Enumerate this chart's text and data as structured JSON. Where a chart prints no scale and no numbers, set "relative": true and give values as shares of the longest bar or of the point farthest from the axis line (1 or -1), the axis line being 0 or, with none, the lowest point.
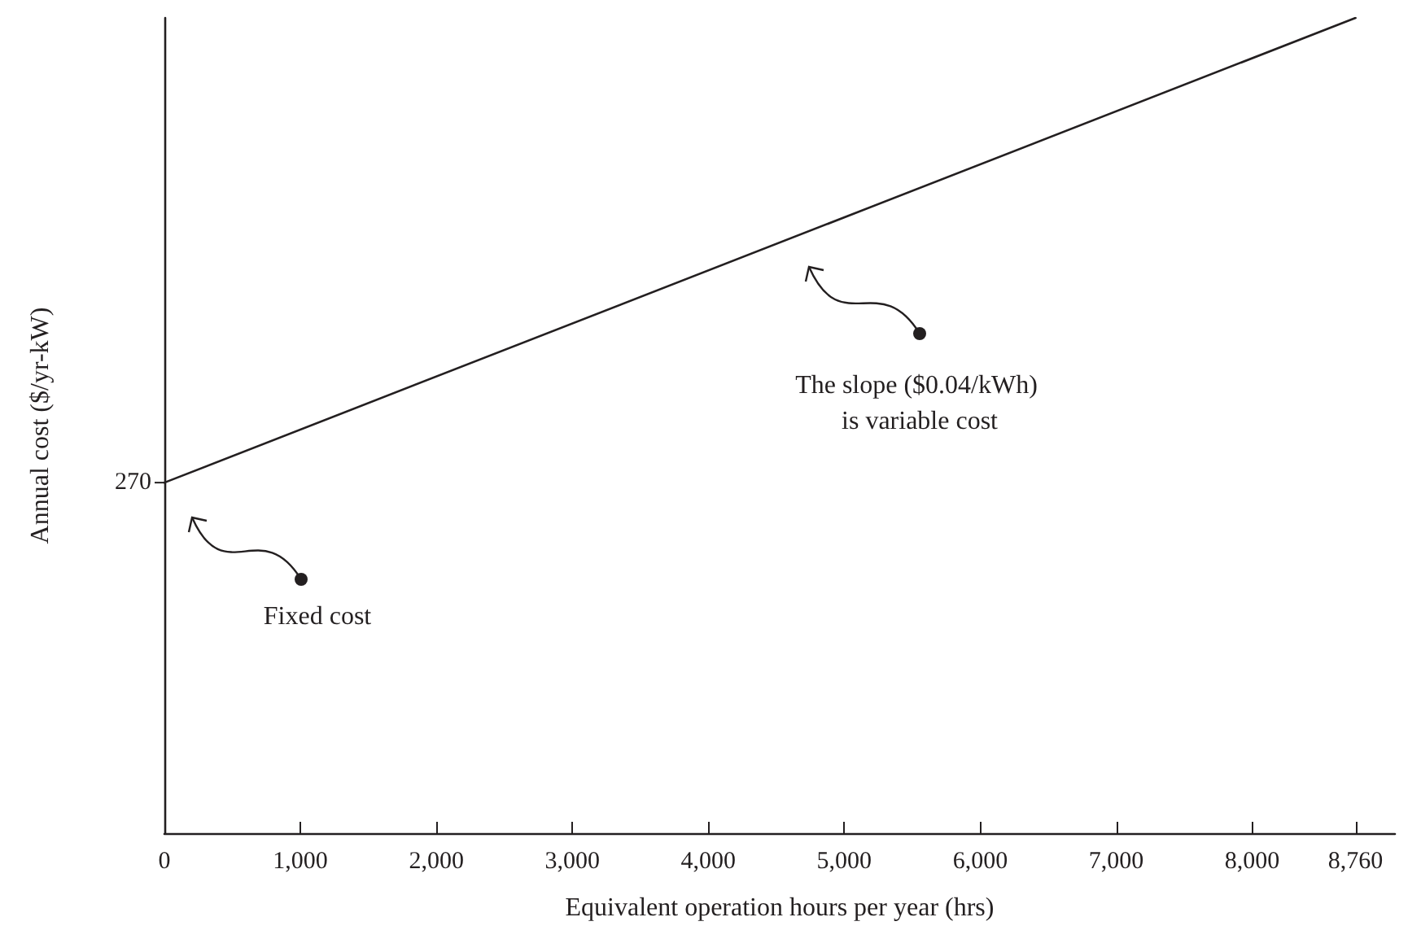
{
  "chart_data": {
    "type": "line",
    "xlabel": "Equivalent operation hours per year (hrs)",
    "ylabel": "Annual cost ($/yr-kW)",
    "relative": true,
    "x": [
      0,
      8760
    ],
    "series": [
      {
        "color": "#231f20",
        "values": [
          0.43,
          1
        ]
      }
    ],
    "xlim": [
      0,
      9050
    ],
    "xticks": [
      0,
      {
        "value": 1000,
        "label": "1,000"
      },
      {
        "value": 2000,
        "label": "2,000"
      },
      {
        "value": 3000,
        "label": "3,000"
      },
      {
        "value": 4000,
        "label": "4,000"
      },
      {
        "value": 5000,
        "label": "5,000"
      },
      {
        "value": 6000,
        "label": "6,000"
      },
      {
        "value": 7000,
        "label": "7,000"
      },
      {
        "value": 8000,
        "label": "8,000"
      },
      {
        "value": 8760,
        "label": "8,760"
      }
    ],
    "annotations": [
      "270",
      "Fixed cost",
      "The slope ($0.04/kWh) is variable cost"
    ],
    "grid": false,
    "marker": "none",
    "line_style": "solid"
  }
}
